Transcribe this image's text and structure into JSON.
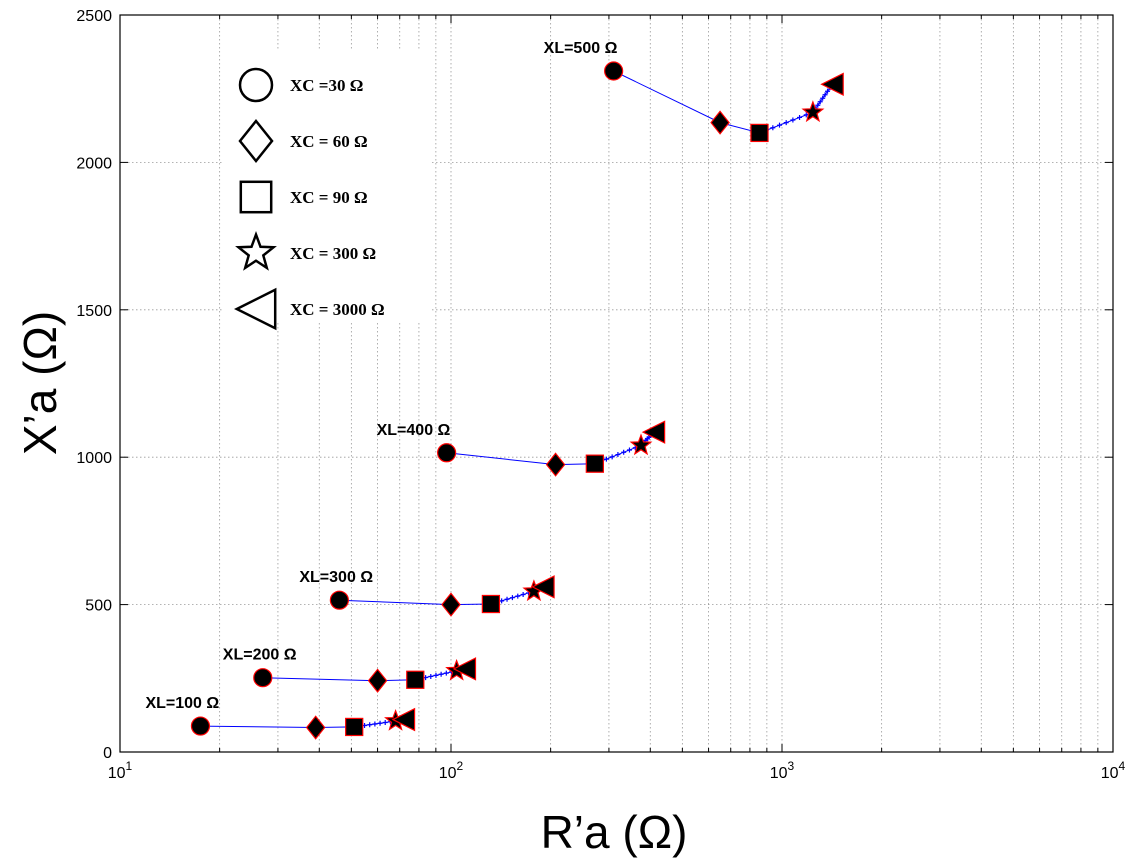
{
  "chart_data": {
    "type": "scatter",
    "title": "",
    "xlabel": "R’a (Ω)",
    "ylabel": "X’a (Ω)",
    "xscale": "log",
    "xlim": [
      10,
      10000
    ],
    "ylim": [
      0,
      2500
    ],
    "grid": true,
    "x_ticks": [
      {
        "value": 10,
        "base": "10",
        "exp": "1"
      },
      {
        "value": 100,
        "base": "10",
        "exp": "2"
      },
      {
        "value": 1000,
        "base": "10",
        "exp": "3"
      },
      {
        "value": 10000,
        "base": "10",
        "exp": "4"
      }
    ],
    "y_ticks": [
      "0",
      "500",
      "1000",
      "1500",
      "2000",
      "2500"
    ],
    "legend": {
      "placement": "top-left",
      "entries": [
        {
          "label": "XC =30 Ω",
          "marker": "circle"
        },
        {
          "label": "XC = 60 Ω",
          "marker": "diamond"
        },
        {
          "label": "XC = 90 Ω",
          "marker": "square"
        },
        {
          "label": "XC = 300 Ω",
          "marker": "star"
        },
        {
          "label": "XC = 3000 Ω",
          "marker": "triangle-left"
        }
      ]
    },
    "line_color": "#0000ff",
    "marker_fill": "#000000",
    "marker_edge": "#ff0000",
    "series": [
      {
        "label": "XL=100 Ω",
        "points": [
          {
            "xc": 30,
            "x": 17.5,
            "y": 88
          },
          {
            "xc": 60,
            "x": 39,
            "y": 83
          },
          {
            "xc": 90,
            "x": 51,
            "y": 85
          },
          {
            "xc": 300,
            "x": 68,
            "y": 105
          },
          {
            "xc": 3000,
            "x": 72,
            "y": 110
          }
        ]
      },
      {
        "label": "XL=200 Ω",
        "points": [
          {
            "xc": 30,
            "x": 27,
            "y": 252
          },
          {
            "xc": 60,
            "x": 60,
            "y": 242
          },
          {
            "xc": 90,
            "x": 78,
            "y": 245
          },
          {
            "xc": 300,
            "x": 104,
            "y": 275
          },
          {
            "xc": 3000,
            "x": 110,
            "y": 282
          }
        ]
      },
      {
        "label": "XL=300 Ω",
        "points": [
          {
            "xc": 30,
            "x": 46,
            "y": 515
          },
          {
            "xc": 60,
            "x": 100,
            "y": 500
          },
          {
            "xc": 90,
            "x": 132,
            "y": 502
          },
          {
            "xc": 300,
            "x": 178,
            "y": 545
          },
          {
            "xc": 3000,
            "x": 190,
            "y": 560
          }
        ]
      },
      {
        "label": "XL=400 Ω",
        "points": [
          {
            "xc": 30,
            "x": 97,
            "y": 1015
          },
          {
            "xc": 60,
            "x": 207,
            "y": 975
          },
          {
            "xc": 90,
            "x": 272,
            "y": 978
          },
          {
            "xc": 300,
            "x": 375,
            "y": 1040
          },
          {
            "xc": 3000,
            "x": 410,
            "y": 1085
          }
        ]
      },
      {
        "label": "XL=500 Ω",
        "points": [
          {
            "xc": 30,
            "x": 310,
            "y": 2310
          },
          {
            "xc": 60,
            "x": 650,
            "y": 2135
          },
          {
            "xc": 90,
            "x": 855,
            "y": 2100
          },
          {
            "xc": 300,
            "x": 1240,
            "y": 2170
          },
          {
            "xc": 3000,
            "x": 1420,
            "y": 2265
          }
        ]
      }
    ]
  }
}
